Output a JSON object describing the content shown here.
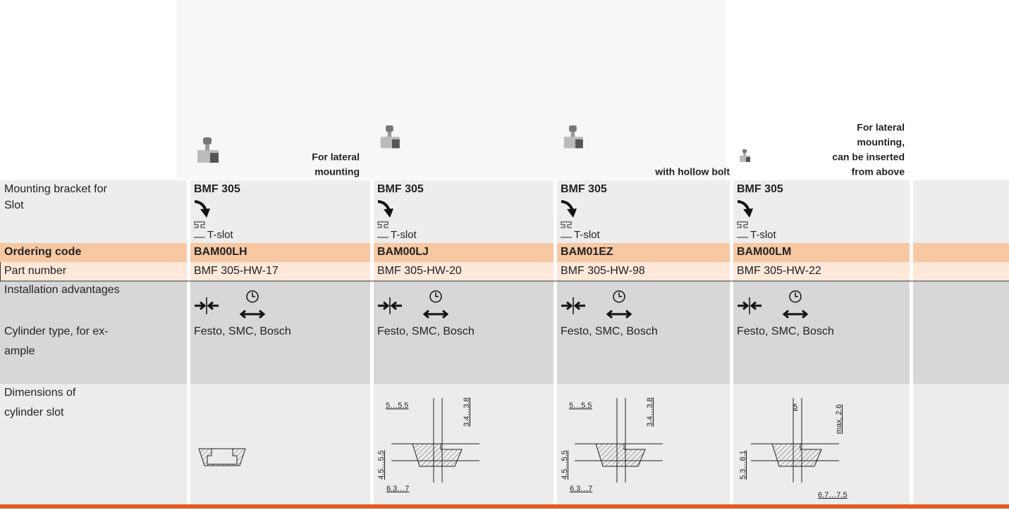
{
  "header": {
    "columns": [
      {
        "caption": [
          "For lateral",
          "mounting"
        ]
      },
      {},
      {
        "caption": [
          "with hollow bolt"
        ]
      },
      {
        "caption": [
          "For lateral",
          "mounting,",
          "can be inserted",
          "from above"
        ]
      }
    ]
  },
  "table": {
    "rows": [
      {
        "label": [
          "Mounting bracket for"
        ],
        "cells": [
          "BMF 305",
          "BMF 305",
          "BMF 305",
          "BMF 305"
        ]
      },
      {
        "label": [
          "Slot"
        ],
        "cells": [
          "T-slot",
          "T-slot",
          "T-slot",
          "T-slot"
        ]
      },
      {
        "label": [
          "Ordering code"
        ],
        "cells": [
          "BAM00LH",
          "BAM00LJ",
          "BAM01EZ",
          "BAM00LM"
        ]
      },
      {
        "label": [
          "Part number"
        ],
        "cells": [
          "BMF 305-HW-17",
          "BMF 305-HW-20",
          "BMF 305-HW-98",
          "BMF 305-HW-22"
        ]
      },
      {
        "label": [
          "Installation advantages"
        ]
      },
      {
        "label": [
          "Cylinder type, for ex-",
          "ample"
        ],
        "cells": [
          "Festo, SMC, Bosch",
          "Festo, SMC, Bosch",
          "Festo, SMC, Bosch",
          "Festo, SMC, Bosch"
        ]
      },
      {
        "label": [
          "Dimensions of",
          "cylinder slot"
        ],
        "dimensions": [
          [],
          [
            "5…5.5",
            "3.4…3.8",
            "4.5…5.5",
            "6.3…7"
          ],
          [
            "5…5.5",
            "3.4…3.8",
            "4.5…5.5",
            "6.3…7"
          ],
          [
            "5",
            "max. 2.6",
            "5.3…8.1",
            "6.7…7.5"
          ]
        ]
      }
    ]
  }
}
